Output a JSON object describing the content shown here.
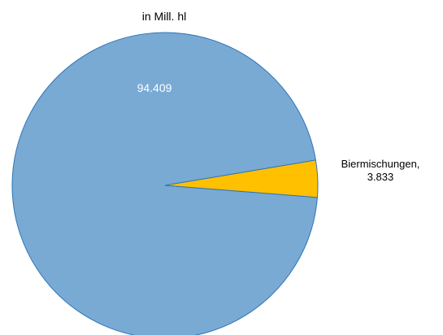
{
  "chart_data": {
    "type": "pie",
    "title": "in Mill. hl",
    "slices": [
      {
        "name": "",
        "value": 94.409,
        "value_label": "94.409",
        "color": "#79AAD4",
        "stroke": "#2E75B6"
      },
      {
        "name": "Biermischungen,",
        "value": 3.833,
        "value_label": "3.833",
        "color": "#FFC000",
        "stroke": "#2E75B6"
      }
    ],
    "legend": "none"
  }
}
